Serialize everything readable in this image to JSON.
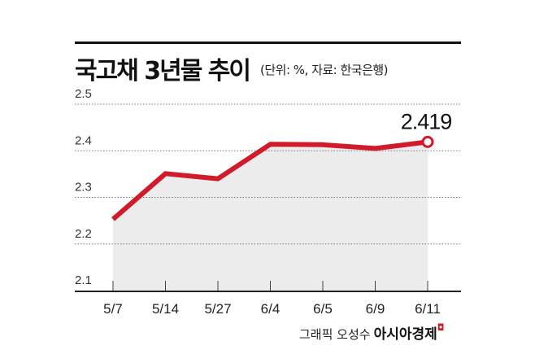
{
  "chart_data": {
    "type": "line",
    "title": "국고채 3년물 추이",
    "subtitle": "(단위: %, 자료: 한국은행)",
    "categories": [
      "5/7",
      "5/14",
      "5/27",
      "6/4",
      "6/5",
      "6/9",
      "6/11"
    ],
    "series": [
      {
        "name": "국고채 3년물",
        "values": [
          2.253,
          2.351,
          2.34,
          2.414,
          2.413,
          2.405,
          2.419
        ]
      }
    ],
    "annotation": "2.419",
    "yticks": [
      "2.5",
      "2.4",
      "2.3",
      "2.2",
      "2.1"
    ],
    "ylim": [
      2.1,
      2.5
    ],
    "grid": true,
    "line_color": "#d11a2a",
    "fill_color": "#ececec"
  },
  "credit": {
    "author": "그래픽 오성수",
    "brand": "아시아경제",
    "brand_mark": "◘"
  }
}
